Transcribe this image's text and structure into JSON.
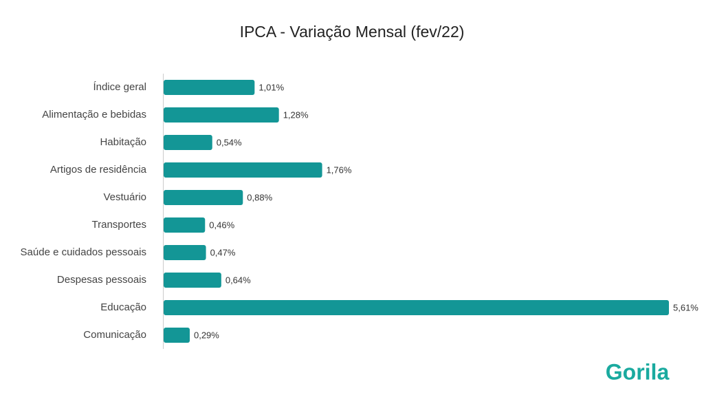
{
  "chart_data": {
    "type": "bar",
    "orientation": "horizontal",
    "title": "IPCA - Variação Mensal (fev/22)",
    "categories": [
      "Índice geral",
      "Alimentação e bebidas",
      "Habitação",
      "Artigos de residência",
      "Vestuário",
      "Transportes",
      "Saúde e cuidados pessoais",
      "Despesas pessoais",
      "Educação",
      "Comunicação"
    ],
    "values": [
      1.01,
      1.28,
      0.54,
      1.76,
      0.88,
      0.46,
      0.47,
      0.64,
      5.61,
      0.29
    ],
    "value_labels": [
      "1,01%",
      "1,28%",
      "0,54%",
      "1,76%",
      "0,88%",
      "0,46%",
      "0,47%",
      "0,64%",
      "5,61%",
      "0,29%"
    ],
    "color": "#139696"
  },
  "brand": "Gorila"
}
